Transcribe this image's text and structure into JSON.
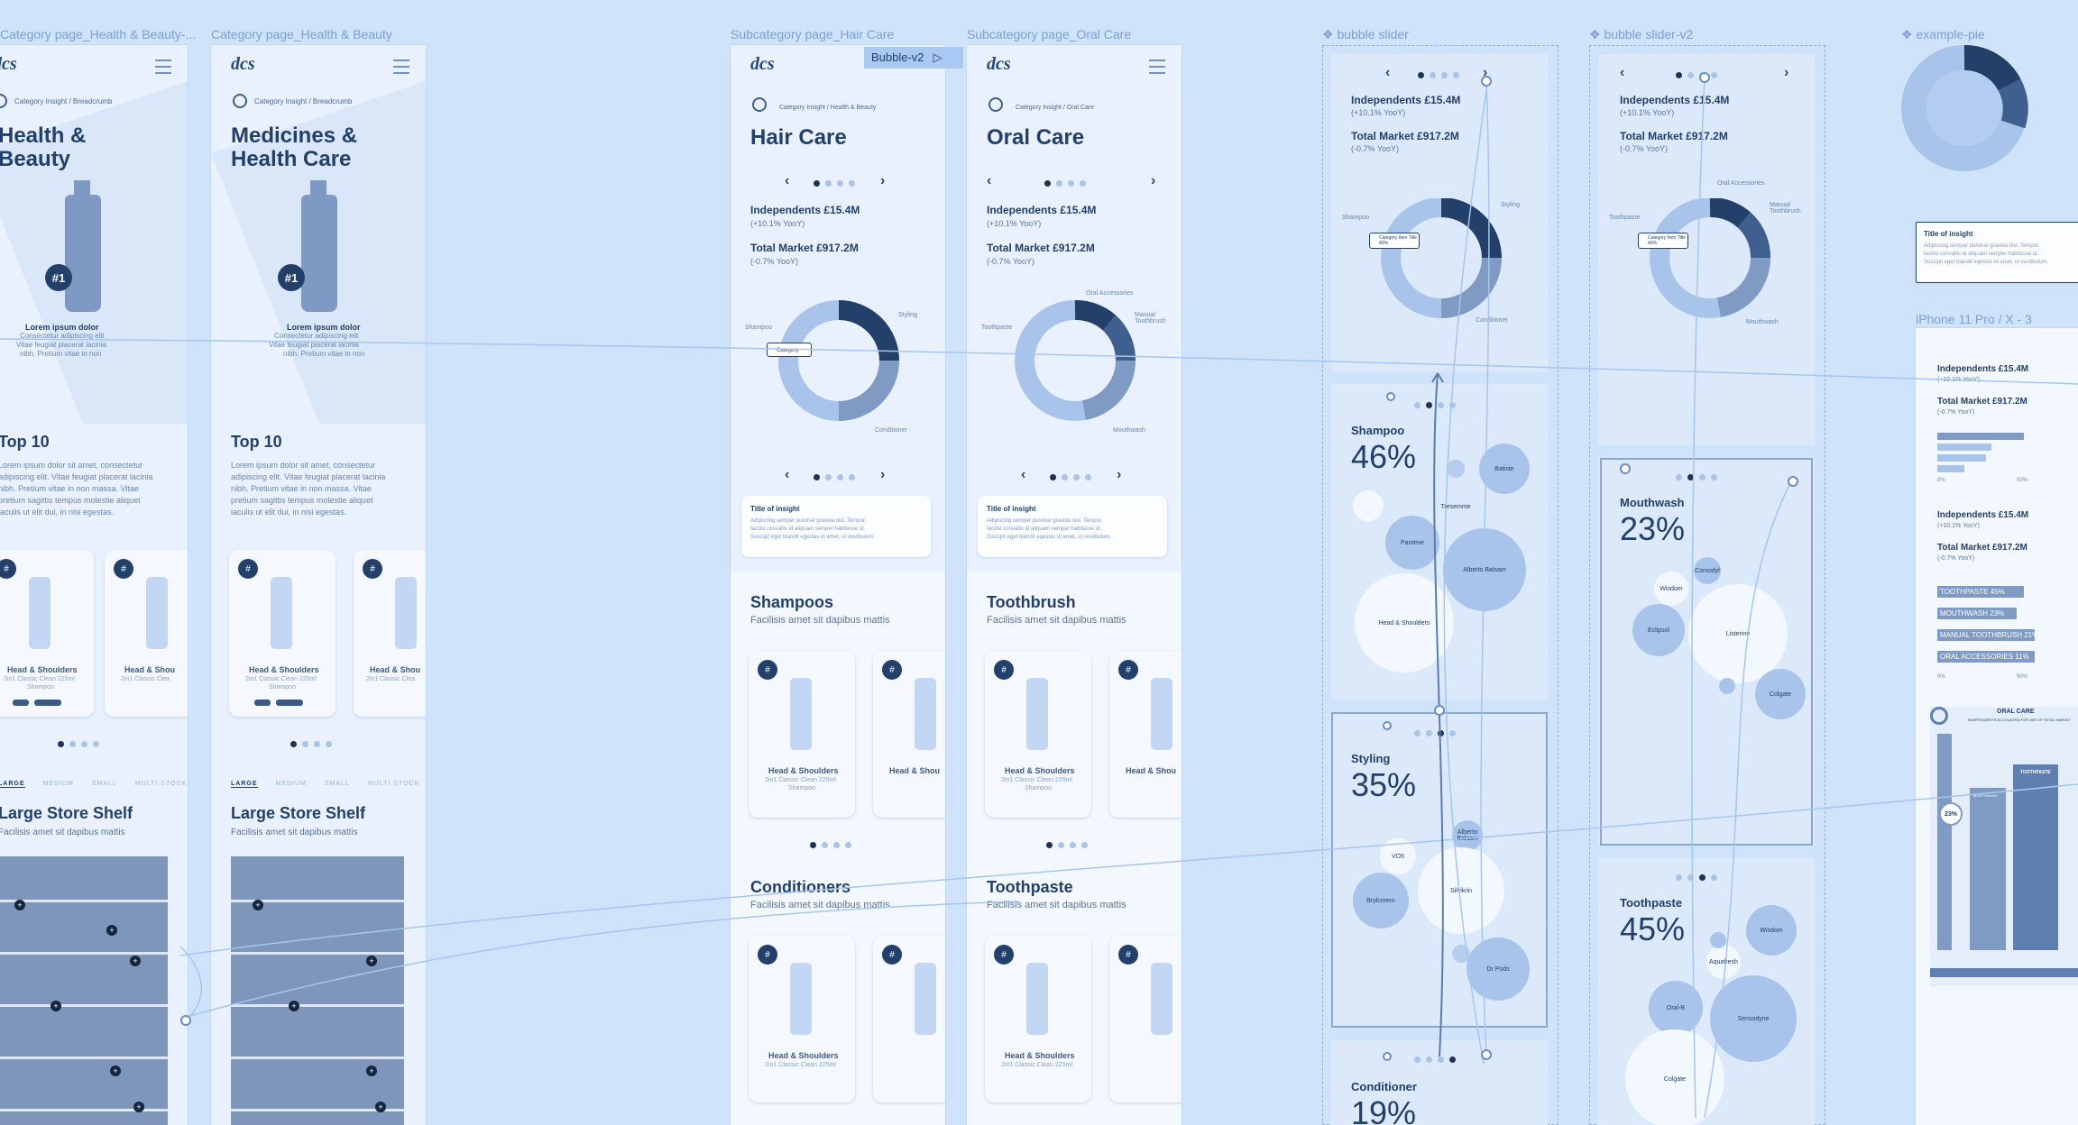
{
  "frame_labels": {
    "f1": "Category page_Health & Beauty-...",
    "f2": "Category page_Health & Beauty",
    "f3": "Subcategory page_Hair Care",
    "f4": "Subcategory page_Oral Care",
    "f5": "❖ bubble slider",
    "f6": "❖ bubble slider-v2",
    "f7": "❖ example-pie",
    "f8": "iPhone 11 Pro / X - 3"
  },
  "flow_tag": "Bubble-v2",
  "logo": "dcs",
  "category_pages": [
    {
      "crumb": "Category Insight / Breadcrumb",
      "title_line1": "Health &",
      "title_line2": "Beauty",
      "rank": "#1",
      "product_title": "Lorem ipsum dolor",
      "product_desc1": "Consectetur adipiscing elit",
      "product_desc2": "Vitae feugiat placerat lacinia",
      "product_desc3": "nibh. Pretium vitae in non",
      "top_title": "Top 10",
      "top_body": [
        "Lorem ipsum dolor sit amet, consectetur",
        "adipiscing elit. Vitae feugiat placerat lacinia",
        "nibh. Pretium vitae in non massa. Vitae",
        "pretium sagittis tempus molestie aliquet",
        "iaculis ut elit dui, in nisi egestas."
      ],
      "tabs": [
        "LARGE",
        "MEDIUM",
        "SMALL",
        "MULTI STOCK"
      ],
      "shelf_title": "Large Store Shelf",
      "shelf_sub": "Facilisis amet sit dapibus mattis"
    },
    {
      "crumb": "Category Insight / Breadcrumb",
      "title_line1": "Medicines &",
      "title_line2": "Health Care",
      "rank": "#1",
      "product_title": "Lorem ipsum dolor",
      "product_desc1": "Consectetur adipiscing elit",
      "product_desc2": "Vitae feugiat placerat lacinia",
      "product_desc3": "nibh. Pretium vitae in non",
      "top_title": "Top 10",
      "top_body": [
        "Lorem ipsum dolor sit amet, consectetur",
        "adipiscing elit. Vitae feugiat placerat lacinia",
        "nibh. Pretium vitae in non massa. Vitae",
        "pretium sagittis tempus molestie aliquet",
        "iaculis ut elit dui, in nisi egestas."
      ],
      "tabs": [
        "LARGE",
        "MEDIUM",
        "SMALL",
        "MULTI STOCK"
      ],
      "shelf_title": "Large Store Shelf",
      "shelf_sub": "Facilisis amet sit dapibus mattis"
    }
  ],
  "product_card": {
    "badge": "#",
    "name": "Head & Shoulders",
    "name_short": "Head & Shou",
    "desc1": "2in1 Classic Clean 225ml",
    "desc1_short": "2in1 Classic Clea",
    "desc2": "Shampoo",
    "desc2_short": "Shampo"
  },
  "sub_pages": [
    {
      "crumb": "Category Insight / Health & Beauty",
      "title": "Hair Care",
      "stat1": "Independents £15.4M",
      "stat1_sub": "(+10.1% YooY)",
      "stat2": "Total Market £917.2M",
      "stat2_sub": "(-0.7% YooY)",
      "donut_labels": [
        "Shampoo",
        "Styling",
        "Conditioner"
      ],
      "tooltip": "Category",
      "insight_title": "Title of insight",
      "insight_body": [
        "Adipiscing semper pulvinar gravida nisl. Tempor,",
        "facilisi convallis id aliquam semper habitasse ut.",
        "Suscipit eget blandit egestas id amet, ut vestibulum."
      ],
      "sec1_title": "Shampoos",
      "sec1_sub": "Facilisis amet sit dapibus mattis",
      "sec2_title": "Conditioners",
      "sec2_sub": "Facilisis amet sit dapibus mattis"
    },
    {
      "crumb": "Category Insight / Oral Care",
      "title": "Oral Care",
      "stat1": "Independents £15.4M",
      "stat1_sub": "(+10.1% YooY)",
      "stat2": "Total Market £917.2M",
      "stat2_sub": "(-0.7% YooY)",
      "donut_labels": [
        "Toothpaste",
        "Oral Accessories",
        "Manual Toothbrush",
        "Mouthwash"
      ],
      "insight_title": "Title of insight",
      "insight_body": [
        "Adipiscing semper pulvinar gravida nisl. Tempor,",
        "facilisi convallis id aliquam semper habitasse ut.",
        "Suscipit eget blandit egestas id amet, ut vestibulum."
      ],
      "sec1_title": "Toothbrush",
      "sec1_sub": "Facilisis amet sit dapibus mattis",
      "sec2_title": "Toothpaste",
      "sec2_sub": "Facilisis amet sit dapibus mattis"
    }
  ],
  "bubble_slider": {
    "stat1": "Independents £15.4M",
    "stat1_sub": "(+10.1% YooY)",
    "stat2": "Total Market £917.2M",
    "stat2_sub": "(-0.7% YooY)",
    "donut_labels": [
      "Shampoo",
      "Styling",
      "Conditioner"
    ],
    "tooltip": "Category Item Title 40%",
    "panels": [
      {
        "name": "Shampoo",
        "pct": "46%",
        "bubbles": [
          "Batiste",
          "Pantene",
          "Tresemme",
          "Alberto Balsam",
          "Head & Shoulders"
        ]
      },
      {
        "name": "Styling",
        "pct": "35%",
        "bubbles": [
          "Alberto Balsam",
          "VO5",
          "Brylcreem",
          "Silvikrin",
          "Dr Pods"
        ]
      },
      {
        "name": "Conditioner",
        "pct": "19%"
      }
    ]
  },
  "bubble_slider_v2": {
    "stat1": "Independents £15.4M",
    "stat1_sub": "(+10.1% YooY)",
    "stat2": "Total Market £917.2M",
    "stat2_sub": "(-0.7% YooY)",
    "donut_labels": [
      "Oral Accessories",
      "Manual Toothbrush",
      "Toothpaste",
      "Mouthwash"
    ],
    "tooltip": "Category Item Title 40%",
    "panels": [
      {
        "name": "Mouthwash",
        "pct": "23%",
        "bubbles": [
          "Corsodyl",
          "Wisdom",
          "Listerine",
          "Colgate",
          "Eclipsol"
        ]
      },
      {
        "name": "Toothpaste",
        "pct": "45%",
        "bubbles": [
          "Wisdom",
          "Aquafresh",
          "Oral-B",
          "Sensodyne",
          "Colgate"
        ]
      }
    ]
  },
  "example_pie": {
    "insight_title": "Title of insight",
    "insight_body": [
      "Adipiscing semper pulvinar gravida nisl. Tempor,",
      "facilisi convallis id aliquam semper habitasse ut.",
      "Suscipit eget blandit egestas id amet, ut vestibulum."
    ]
  },
  "iphone": {
    "stat1": "Independents £15.4M",
    "stat1_sub": "(+10.1% YooY)",
    "stat2": "Total Market £917.2M",
    "stat2_sub": "(-0.7% YooY)",
    "axis": [
      "0%",
      "50%"
    ],
    "bars": [
      "TOOTHPASTE 45%",
      "MOUTHWASH 23%",
      "MANUAL TOOTHBRUSH 21%",
      "ORAL ACCESSORIES 11%"
    ],
    "oral_title": "ORAL CARE",
    "oral_sub": "INDEPENDENTS ACCOUNTED FOR 26% OF TOTAL MARKET",
    "oral_pct": "23%",
    "tooth_label": "TOOTHPASTE",
    "mouth_label": "MOUTHWASH"
  },
  "colors": {
    "bg": "#cfe3fb",
    "navy": "#23406b",
    "mid": "#7f9ac3",
    "light": "#a9c4ea"
  }
}
